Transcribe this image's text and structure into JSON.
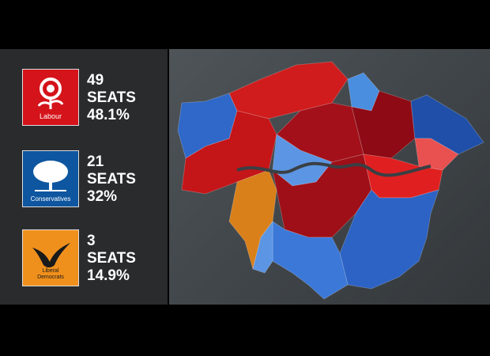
{
  "parties": [
    {
      "logo_text": "Labour",
      "seats": "49",
      "seats_label": "SEATS",
      "share": "48.1%"
    },
    {
      "logo_text": "Conservatives",
      "seats": "21",
      "seats_label": "SEATS",
      "share": "32%"
    },
    {
      "logo_text": "Liberal Democrats",
      "seats": "3",
      "seats_label": "SEATS",
      "share": "14.9%"
    }
  ]
}
